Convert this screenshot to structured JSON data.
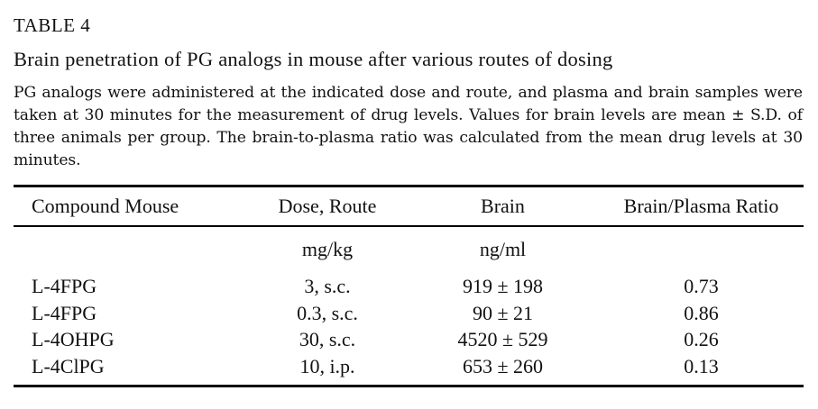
{
  "table_label": "TABLE 4",
  "title": "Brain penetration of PG analogs in mouse after various routes of dosing",
  "caption": "PG analogs were administered at the indicated dose and route, and plasma and brain samples were taken at 30 minutes for the measurement of drug levels. Values for brain levels are mean ± S.D. of three animals per group. The brain-to-plasma ratio was calculated from the mean drug levels at 30 minutes.",
  "headers": [
    "Compound Mouse",
    "Dose, Route",
    "Brain",
    "Brain/Plasma Ratio"
  ],
  "units": [
    "",
    "mg/kg",
    "ng/ml",
    ""
  ],
  "rows": [
    [
      "L-4FPG",
      "3, s.c.",
      "919 ± 198",
      "0.73"
    ],
    [
      "L-4FPG",
      "0.3, s.c.",
      "90 ± 21",
      "0.86"
    ],
    [
      "L-4OHPG",
      "30, s.c.",
      "4520 ± 529",
      "0.26"
    ],
    [
      "L-4ClPG",
      "10, i.p.",
      "653 ± 260",
      "0.13"
    ]
  ]
}
